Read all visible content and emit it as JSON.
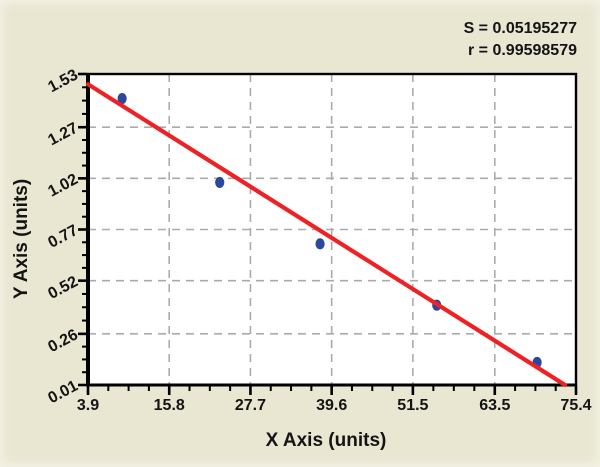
{
  "stats": {
    "s_label": "S = 0.05195277",
    "r_label": "r = 0.99598579"
  },
  "chart_data": {
    "type": "scatter",
    "title": "",
    "xlabel": "X Axis (units)",
    "ylabel": "Y Axis (units)",
    "xlim": [
      3.9,
      75.4
    ],
    "ylim": [
      0.01,
      1.53
    ],
    "x_ticks": [
      3.9,
      15.8,
      27.7,
      39.6,
      51.5,
      63.5,
      75.4
    ],
    "x_tick_labels": [
      "3.9",
      "15.8",
      "27.7",
      "39.6",
      "51.5",
      "63.5",
      "75.4"
    ],
    "y_ticks": [
      0.01,
      0.26,
      0.52,
      0.77,
      1.02,
      1.27,
      1.53
    ],
    "y_tick_labels": [
      "0.01",
      "0.26",
      "0.52",
      "0.77",
      "1.02",
      "1.27",
      "1.53"
    ],
    "minor_ticks_between_majors": 3,
    "grid": true,
    "legend": "none",
    "points": [
      {
        "x": 8.9,
        "y": 1.41
      },
      {
        "x": 23.2,
        "y": 1.0
      },
      {
        "x": 37.9,
        "y": 0.7
      },
      {
        "x": 55.0,
        "y": 0.4
      },
      {
        "x": 69.7,
        "y": 0.12
      }
    ],
    "regression_line": {
      "x1": 3.9,
      "y1": 1.48,
      "x2": 73.8,
      "y2": 0.01
    },
    "annotations": [
      "S = 0.05195277",
      "r = 0.99598579"
    ]
  },
  "colors": {
    "background": "#e9e6d2",
    "plot_background": "#ffffff",
    "axis": "#000000",
    "grid": "#ababab",
    "regression_line": "#ee2125",
    "point": "#2b489e",
    "text": "#141414"
  }
}
